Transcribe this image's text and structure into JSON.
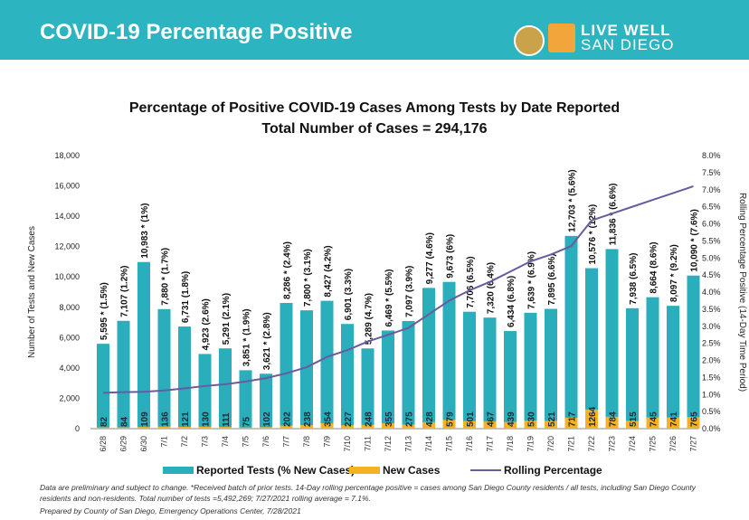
{
  "header": {
    "title": "COVID-19 Percentage Positive",
    "logo_line1": "LIVE WELL",
    "logo_line2": "SAN DIEGO"
  },
  "chart_data": {
    "type": "bar",
    "title": "Percentage of Positive COVID-19 Cases Among Tests by Date Reported",
    "subtitle": "Total Number of Cases = 294,176",
    "ylabel": "Number of Tests and New Cases",
    "y2label": "Rolling Percentage Positive (14-Day Time Period)",
    "ylim": [
      0,
      18000
    ],
    "y2lim": [
      0,
      8
    ],
    "yticks": [
      "0",
      "2,000",
      "4,000",
      "6,000",
      "8,000",
      "10,000",
      "12,000",
      "14,000",
      "16,000",
      "18,000"
    ],
    "y2ticks": [
      "0.0%",
      "0.5%",
      "1.0%",
      "1.5%",
      "2.0%",
      "2.5%",
      "3.0%",
      "3.5%",
      "4.0%",
      "4.5%",
      "5.0%",
      "5.5%",
      "6.0%",
      "6.5%",
      "7.0%",
      "7.5%",
      "8.0%"
    ],
    "categories": [
      "6/28",
      "6/29",
      "6/30",
      "7/1",
      "7/2",
      "7/3",
      "7/4",
      "7/5",
      "7/6",
      "7/7",
      "7/8",
      "7/9",
      "7/10",
      "7/11",
      "7/12",
      "7/13",
      "7/14",
      "7/15",
      "7/16",
      "7/17",
      "7/18",
      "7/19",
      "7/20",
      "7/21",
      "7/22",
      "7/23",
      "7/24",
      "7/25",
      "7/26",
      "7/27"
    ],
    "series": [
      {
        "name": "Reported Tests (% New Cases)",
        "color": "#2aaebb",
        "values": [
          5595,
          7107,
          10983,
          7880,
          6731,
          4923,
          5291,
          3851,
          3621,
          8286,
          7800,
          8427,
          6901,
          5289,
          6469,
          7097,
          9277,
          9673,
          7706,
          7320,
          6434,
          7639,
          7895,
          12703,
          10576,
          11836,
          7938,
          8664,
          8097,
          10090
        ],
        "labels": [
          "5,595 * (1.5%)",
          "7,107 (1.2%)",
          "10,983 * (1%)",
          "7,880 * (1.7%)",
          "6,731 (1.8%)",
          "4,923 (2.6%)",
          "5,291 (2.1%)",
          "3,851 * (1.9%)",
          "3,621 * (2.8%)",
          "8,286 * (2.4%)",
          "7,800 * (3.1%)",
          "8,427 (4.2%)",
          "6,901 (3.3%)",
          "5,289 (4.7%)",
          "6,469 * (5.5%)",
          "7,097 (3.9%)",
          "9,277 (4.6%)",
          "9,673 (6%)",
          "7,706 (6.5%)",
          "7,320 (6.4%)",
          "6,434 (6.8%)",
          "7,639 * (6.9%)",
          "7,895 (6.6%)",
          "12,703 * (5.6%)",
          "10,576 * (12%)",
          "11,836 * (6.6%)",
          "7,938 (6.5%)",
          "8,664 (8.6%)",
          "8,097 * (9.2%)",
          "10,090 * (7.6%)"
        ]
      },
      {
        "name": "New Cases",
        "color": "#f5b324",
        "values": [
          82,
          84,
          109,
          136,
          121,
          130,
          111,
          75,
          102,
          202,
          238,
          354,
          227,
          248,
          355,
          275,
          428,
          579,
          501,
          467,
          439,
          530,
          521,
          717,
          1264,
          784,
          515,
          745,
          741,
          765
        ]
      },
      {
        "name": "Rolling Percentage",
        "color": "#6a5a9e",
        "axis": "right",
        "values": [
          1.05,
          1.07,
          1.08,
          1.12,
          1.18,
          1.25,
          1.3,
          1.38,
          1.48,
          1.62,
          1.8,
          2.1,
          2.3,
          2.55,
          2.75,
          2.95,
          3.35,
          3.75,
          4.05,
          4.3,
          4.6,
          4.9,
          5.1,
          5.35,
          6.1,
          6.3,
          6.5,
          6.7,
          6.9,
          7.1
        ]
      }
    ],
    "legend_position": "bottom"
  },
  "footnote": {
    "line1": "Data are preliminary and subject to change. *Received batch of prior tests. 14-Day rolling percentage positive = cases among San Diego County residents / all tests, including San Diego County residents and non-residents. Total number of tests =5,492,269; 7/27/2021 rolling average = 7.1%.",
    "line2": "Prepared by County of San Diego, Emergency Operations Center, 7/28/2021"
  }
}
